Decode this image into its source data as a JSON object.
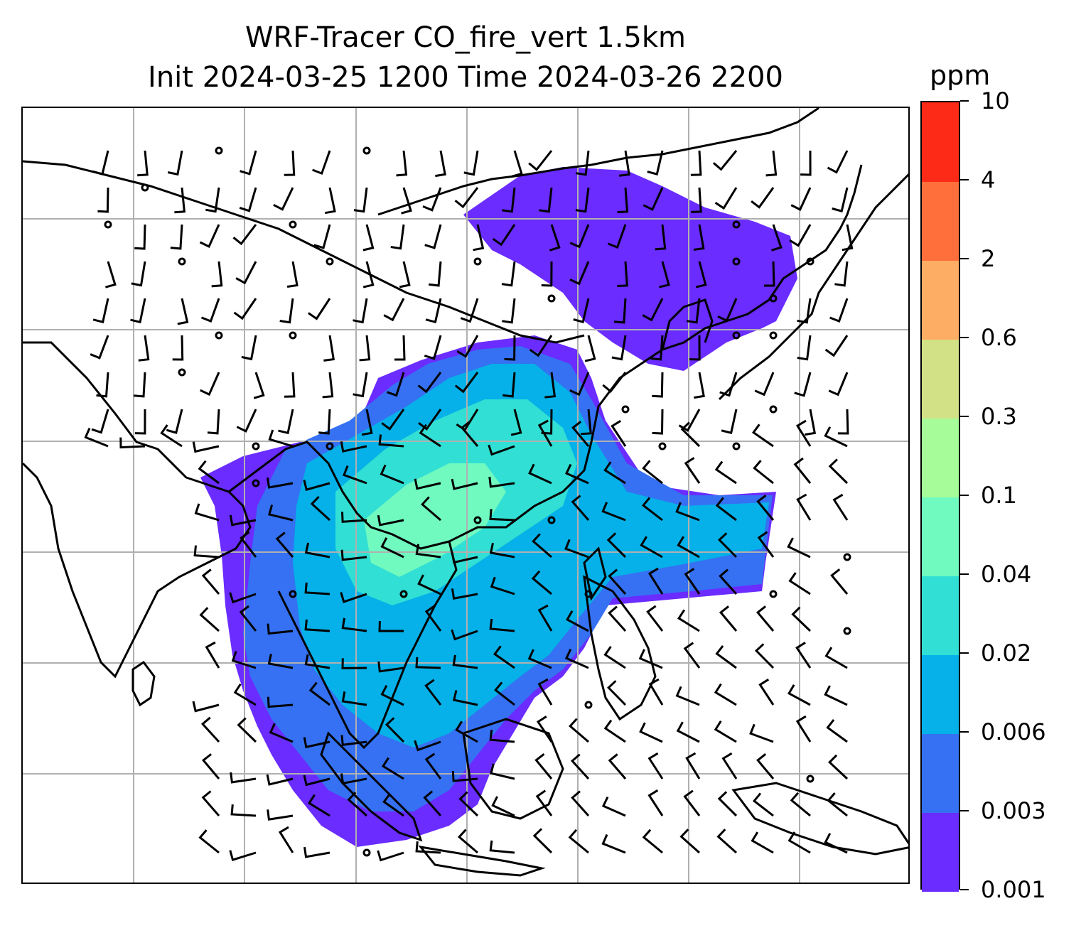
{
  "title": {
    "line1": "WRF-Tracer CO_fire_vert 1.5km",
    "line2": "Init 2024-03-25 1200 Time 2024-03-26 2200"
  },
  "colorbar": {
    "unit": "ppm",
    "levels": [
      "0.001",
      "0.003",
      "0.006",
      "0.02",
      "0.04",
      "0.1",
      "0.3",
      "0.6",
      "2",
      "4",
      "10"
    ],
    "colors": [
      "#6a2cff",
      "#3571f2",
      "#05b1e8",
      "#31dfd4",
      "#70fac0",
      "#a6fc99",
      "#d2e086",
      "#fdad64",
      "#ff6f3c",
      "#fe2a18"
    ]
  },
  "map": {
    "gridlines": true,
    "coastline_color": "#000000",
    "grid_color": "#b0b0b0"
  }
}
